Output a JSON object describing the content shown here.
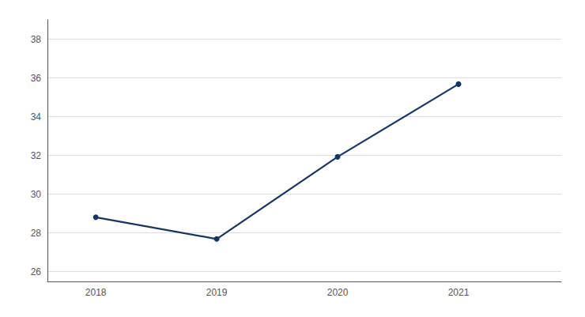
{
  "chart_data": {
    "type": "line",
    "x": [
      2018,
      2019,
      2020,
      2021
    ],
    "values": [
      28.81,
      27.69,
      31.93,
      35.68
    ],
    "color": "#1a3560",
    "marker": "circle",
    "xlim": [
      2017.6,
      2021.85
    ],
    "xticks": [
      2018,
      2019,
      2020,
      2021
    ],
    "ylim": [
      25.5,
      39.0
    ],
    "yticks": [
      26,
      28,
      30,
      32,
      34,
      36,
      38
    ],
    "grid": true
  }
}
